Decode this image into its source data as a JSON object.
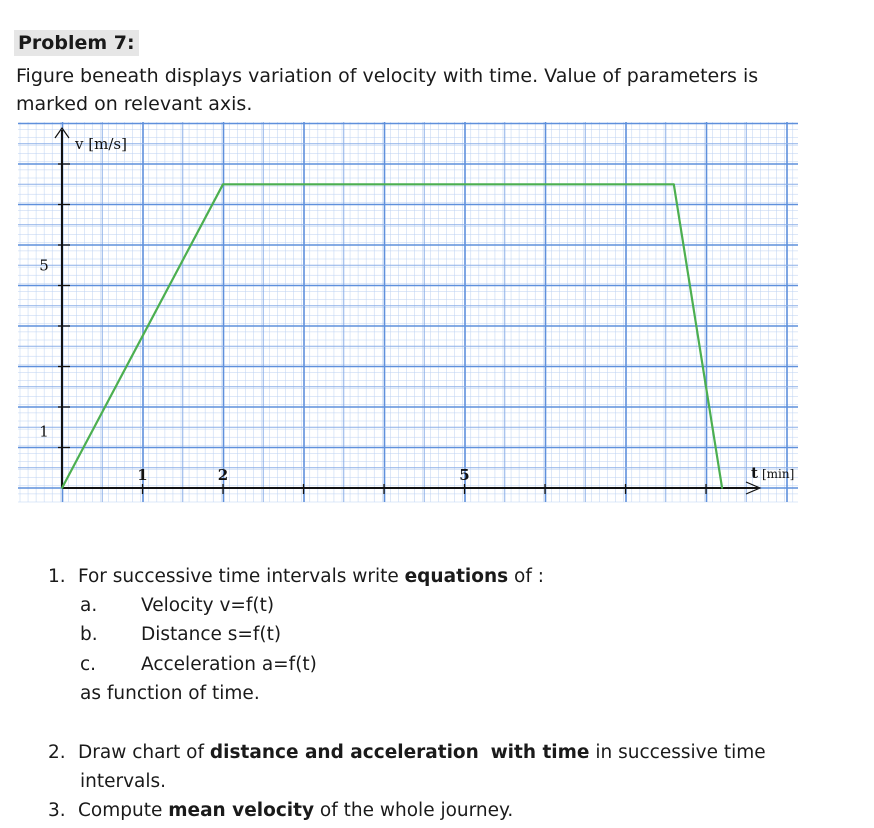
{
  "problem": {
    "title": "Problem 7:",
    "intro": "Figure beneath displays variation of velocity with time. Value of parameters is marked on relevant axis."
  },
  "chart_data": {
    "type": "line",
    "ylabel": "v [m/s]",
    "xlabel": "t [min]",
    "x_ticks": [
      "1",
      "2",
      "5"
    ],
    "y_ticks": [
      "1",
      "5"
    ],
    "xlim": [
      0,
      9
    ],
    "ylim": [
      0,
      8.5
    ],
    "grid": true,
    "series": [
      {
        "x": [
          0,
          2,
          7.6,
          8.2
        ],
        "y": [
          0,
          7.5,
          7.5,
          0
        ],
        "color": "#4caf50"
      }
    ]
  },
  "questions": {
    "q1": {
      "num": "1.",
      "pre": "For successive time intervals write ",
      "bold": "equations",
      "post": " of :",
      "items": [
        {
          "letter": "a.",
          "text": "Velocity v=f(t)"
        },
        {
          "letter": "b.",
          "text": "Distance s=f(t)"
        },
        {
          "letter": "c.",
          "text": "Acceleration a=f(t)"
        }
      ],
      "tail": "as function of time."
    },
    "q2": {
      "num": "2.",
      "pre": "Draw chart of ",
      "bold1": "distance and acceleration",
      "mid": "  ",
      "bold2": "with time",
      "post": " in successive time",
      "line2": "intervals."
    },
    "q3": {
      "num": "3.",
      "pre": "Compute ",
      "bold": "mean velocity",
      "post": " of the whole journey."
    }
  }
}
